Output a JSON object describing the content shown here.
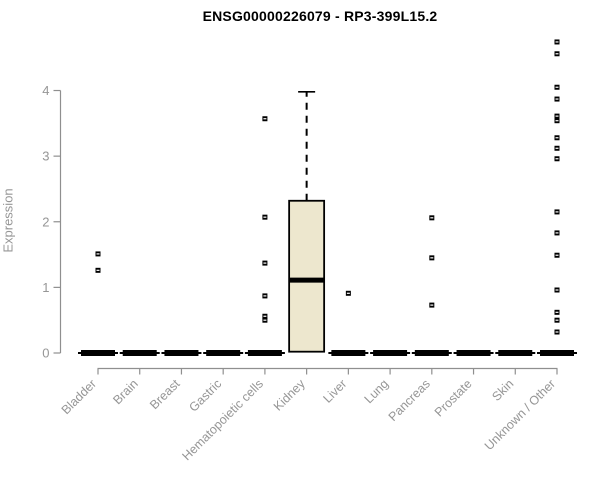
{
  "header": {
    "title": "ENSG00000226079 - RP3-399L15.2"
  },
  "colors": {
    "background": "#ffffff",
    "box_fill": "#ede7ce",
    "box_stroke": "#000000",
    "axis": "#8f8f8f",
    "tick_label": "#969696",
    "title_text": "#000000",
    "outlier": "#000000",
    "outlier_slit": "#ffffff"
  },
  "chart_data": {
    "type": "boxplot",
    "title": "ENSG00000226079 - RP3-399L15.2",
    "xlabel": "",
    "ylabel": "Expression",
    "ylim": [
      0,
      4.85
    ],
    "yticks": [
      "0",
      "1",
      "2",
      "3",
      "4"
    ],
    "grid": false,
    "legend": null,
    "categories": [
      "Bladder",
      "Brain",
      "Breast",
      "Gastric",
      "Hematopoietic cells",
      "Kidney",
      "Liver",
      "Lung",
      "Pancreas",
      "Prostate",
      "Skin",
      "Unknown / Other"
    ],
    "boxes": [
      {
        "category": "Bladder",
        "q1": 0,
        "median": 0,
        "q3": 0,
        "whisker_low": 0,
        "whisker_high": 0,
        "outliers": [
          1.51,
          1.26
        ]
      },
      {
        "category": "Brain",
        "q1": 0,
        "median": 0,
        "q3": 0,
        "whisker_low": 0,
        "whisker_high": 0,
        "outliers": []
      },
      {
        "category": "Breast",
        "q1": 0,
        "median": 0,
        "q3": 0,
        "whisker_low": 0,
        "whisker_high": 0,
        "outliers": []
      },
      {
        "category": "Gastric",
        "q1": 0,
        "median": 0,
        "q3": 0,
        "whisker_low": 0,
        "whisker_high": 0,
        "outliers": []
      },
      {
        "category": "Hematopoietic cells",
        "q1": 0,
        "median": 0,
        "q3": 0,
        "whisker_low": 0,
        "whisker_high": 0,
        "outliers": [
          3.57,
          2.07,
          1.37,
          0.87,
          0.56,
          0.5
        ]
      },
      {
        "category": "Kidney",
        "q1": 0.02,
        "median": 1.11,
        "q3": 2.32,
        "whisker_low": 0.02,
        "whisker_high": 3.98,
        "outliers": []
      },
      {
        "category": "Liver",
        "q1": 0,
        "median": 0,
        "q3": 0,
        "whisker_low": 0,
        "whisker_high": 0,
        "outliers": [
          0.91
        ]
      },
      {
        "category": "Lung",
        "q1": 0,
        "median": 0,
        "q3": 0,
        "whisker_low": 0,
        "whisker_high": 0,
        "outliers": []
      },
      {
        "category": "Pancreas",
        "q1": 0,
        "median": 0,
        "q3": 0,
        "whisker_low": 0,
        "whisker_high": 0,
        "outliers": [
          2.06,
          1.45,
          0.73
        ]
      },
      {
        "category": "Prostate",
        "q1": 0,
        "median": 0,
        "q3": 0,
        "whisker_low": 0,
        "whisker_high": 0,
        "outliers": []
      },
      {
        "category": "Skin",
        "q1": 0,
        "median": 0,
        "q3": 0,
        "whisker_low": 0,
        "whisker_high": 0,
        "outliers": []
      },
      {
        "category": "Unknown / Other",
        "q1": 0,
        "median": 0,
        "q3": 0,
        "whisker_low": 0,
        "whisker_high": 0,
        "outliers": [
          4.74,
          4.56,
          4.05,
          3.87,
          3.61,
          3.54,
          3.28,
          3.12,
          2.96,
          2.15,
          1.83,
          1.49,
          0.96,
          0.62,
          0.5,
          0.32
        ]
      }
    ]
  }
}
